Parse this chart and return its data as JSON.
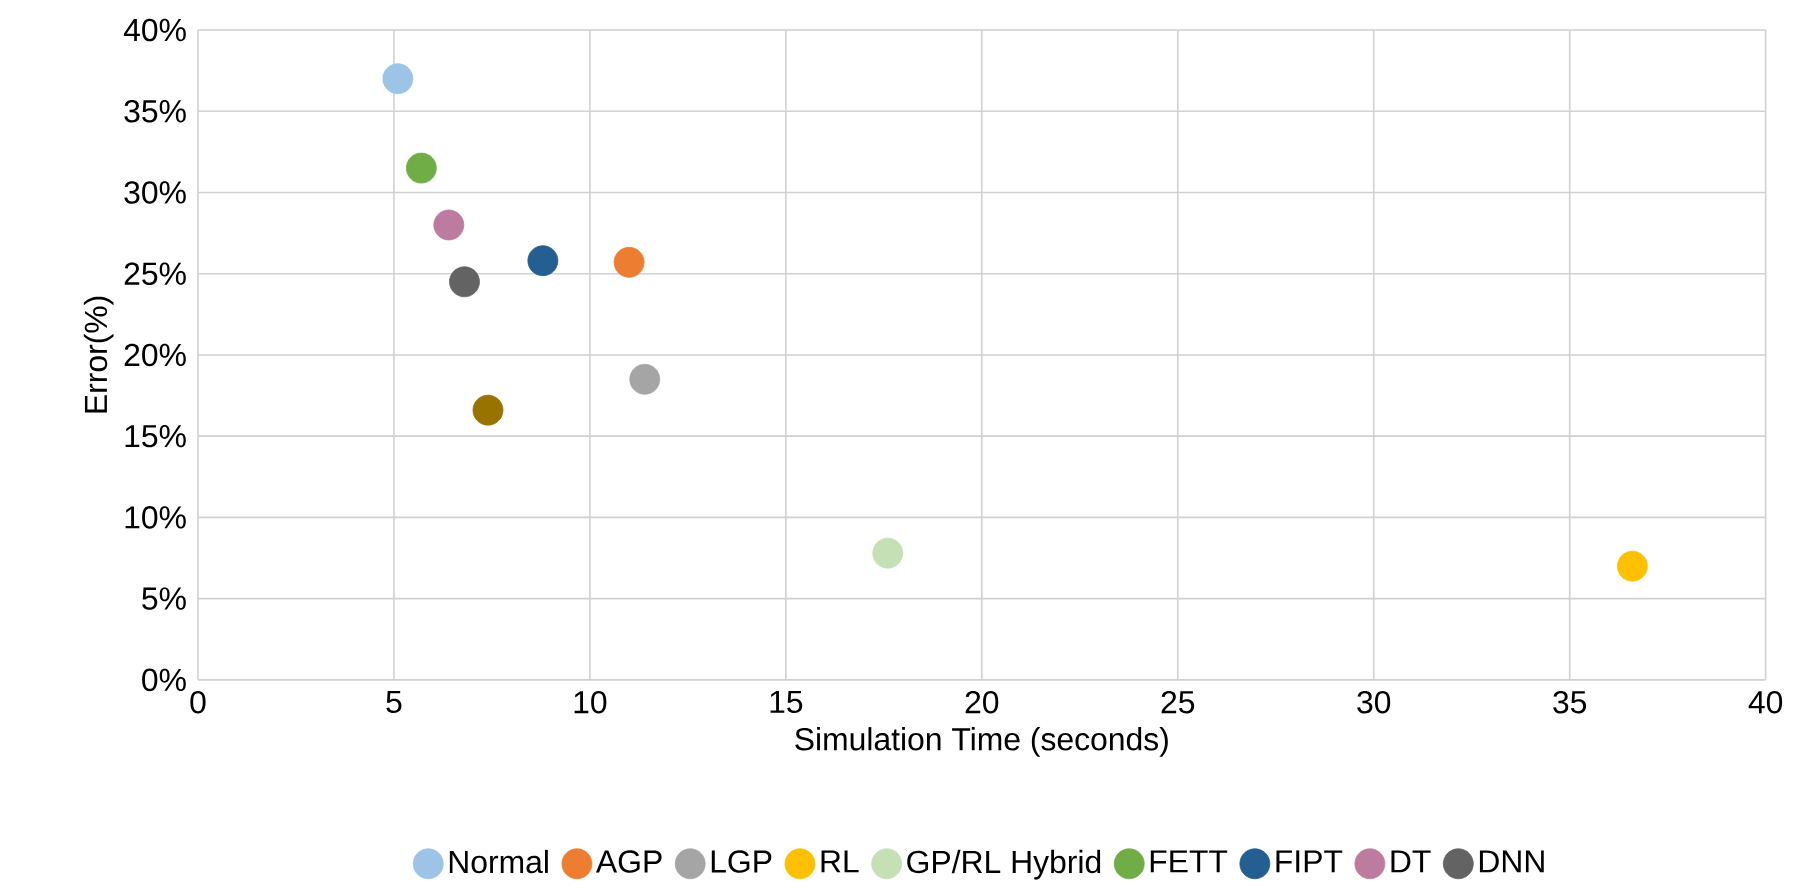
{
  "chart_data": {
    "type": "scatter",
    "xlabel": "Simulation Time (seconds)",
    "ylabel": "Error(%)",
    "xlim": [
      0,
      40
    ],
    "xticks": [
      0,
      5,
      10,
      15,
      20,
      25,
      30,
      35,
      40
    ],
    "ylim": [
      0,
      40
    ],
    "yticks": [
      {
        "value": 0,
        "label": "0%"
      },
      {
        "value": 5,
        "label": "5%"
      },
      {
        "value": 10,
        "label": "10%"
      },
      {
        "value": 15,
        "label": "15%"
      },
      {
        "value": 20,
        "label": "20%"
      },
      {
        "value": 25,
        "label": "25%"
      },
      {
        "value": 30,
        "label": "30%"
      },
      {
        "value": 35,
        "label": "35%"
      },
      {
        "value": 40,
        "label": "40%"
      }
    ],
    "grid": true,
    "legend": "bottom",
    "marker": "circle",
    "series": [
      {
        "name": "Normal",
        "color": "#9dc3e6",
        "x": [
          5.1
        ],
        "values": [
          37.0
        ]
      },
      {
        "name": "AGP",
        "color": "#ed7d31",
        "x": [
          11.0
        ],
        "values": [
          25.7
        ]
      },
      {
        "name": "LGP",
        "color": "#a5a5a5",
        "x": [
          11.4
        ],
        "values": [
          18.5
        ]
      },
      {
        "name": "RL",
        "color": "#ffc000",
        "x": [
          36.6
        ],
        "values": [
          7.0
        ]
      },
      {
        "name": "GP/RL Hybrid",
        "color": "#c5e0b4",
        "x": [
          17.6
        ],
        "values": [
          7.8
        ]
      },
      {
        "name": "FETT",
        "color": "#70ad47",
        "x": [
          5.7
        ],
        "values": [
          31.5
        ]
      },
      {
        "name": "FIPT",
        "color": "#255e91",
        "x": [
          8.8
        ],
        "values": [
          25.8
        ]
      },
      {
        "name": "DT",
        "color": "#bd7ba0",
        "x": [
          6.4
        ],
        "values": [
          28.0
        ]
      },
      {
        "name": "DNN",
        "color": "#636363",
        "x": [
          6.8
        ],
        "values": [
          24.5
        ]
      },
      {
        "color": "#997300",
        "x": [
          7.4
        ],
        "values": [
          16.6
        ]
      }
    ]
  }
}
